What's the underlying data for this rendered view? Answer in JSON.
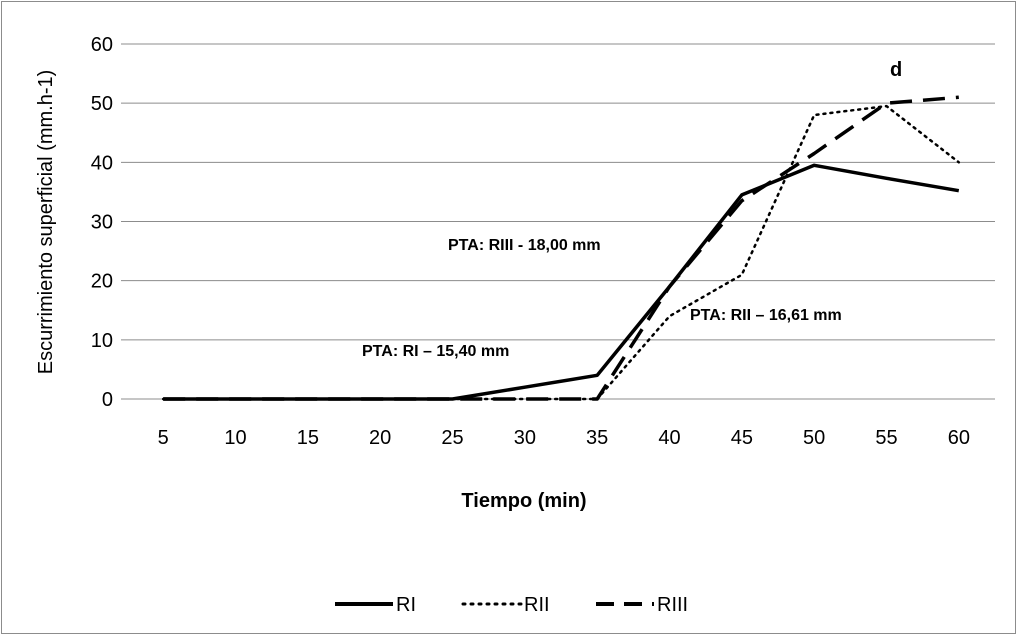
{
  "chart_data": {
    "type": "line",
    "xlabel": "Tiempo (min)",
    "ylabel": "Escurrimiento superficial (mm.h-1)",
    "categories": [
      "5",
      "10",
      "15",
      "20",
      "25",
      "30",
      "35",
      "40",
      "45",
      "50",
      "55",
      "60"
    ],
    "ylim": [
      0,
      60
    ],
    "yticks": [
      "0",
      "10",
      "20",
      "30",
      "40",
      "50",
      "60"
    ],
    "grid": "horizontal",
    "legend_position": "bottom",
    "series": [
      {
        "name": "RI",
        "style": "solid",
        "values": [
          0,
          0,
          0,
          0,
          0,
          2,
          4,
          19,
          34.5,
          39.5,
          37.3,
          35.2
        ]
      },
      {
        "name": "RII",
        "style": "dotted",
        "values": [
          0,
          0,
          0,
          0,
          0,
          0,
          0,
          14,
          21,
          48,
          49.5,
          40
        ]
      },
      {
        "name": "RIII",
        "style": "dashed",
        "values": [
          0,
          0,
          0,
          0,
          0,
          0,
          0,
          19,
          33.5,
          41.5,
          50,
          51
        ]
      }
    ],
    "annotations": [
      {
        "text": "PTA: RIII -  18,00 mm",
        "anchor": "RIII"
      },
      {
        "text": "PTA: RII – 16,61 mm",
        "anchor": "RII"
      },
      {
        "text": "PTA: RI – 15,40 mm",
        "anchor": "RI"
      },
      {
        "text": "d",
        "anchor": "panel-label"
      }
    ],
    "colors": {
      "lines": "#000000",
      "grid": "#8c8c8c"
    }
  }
}
